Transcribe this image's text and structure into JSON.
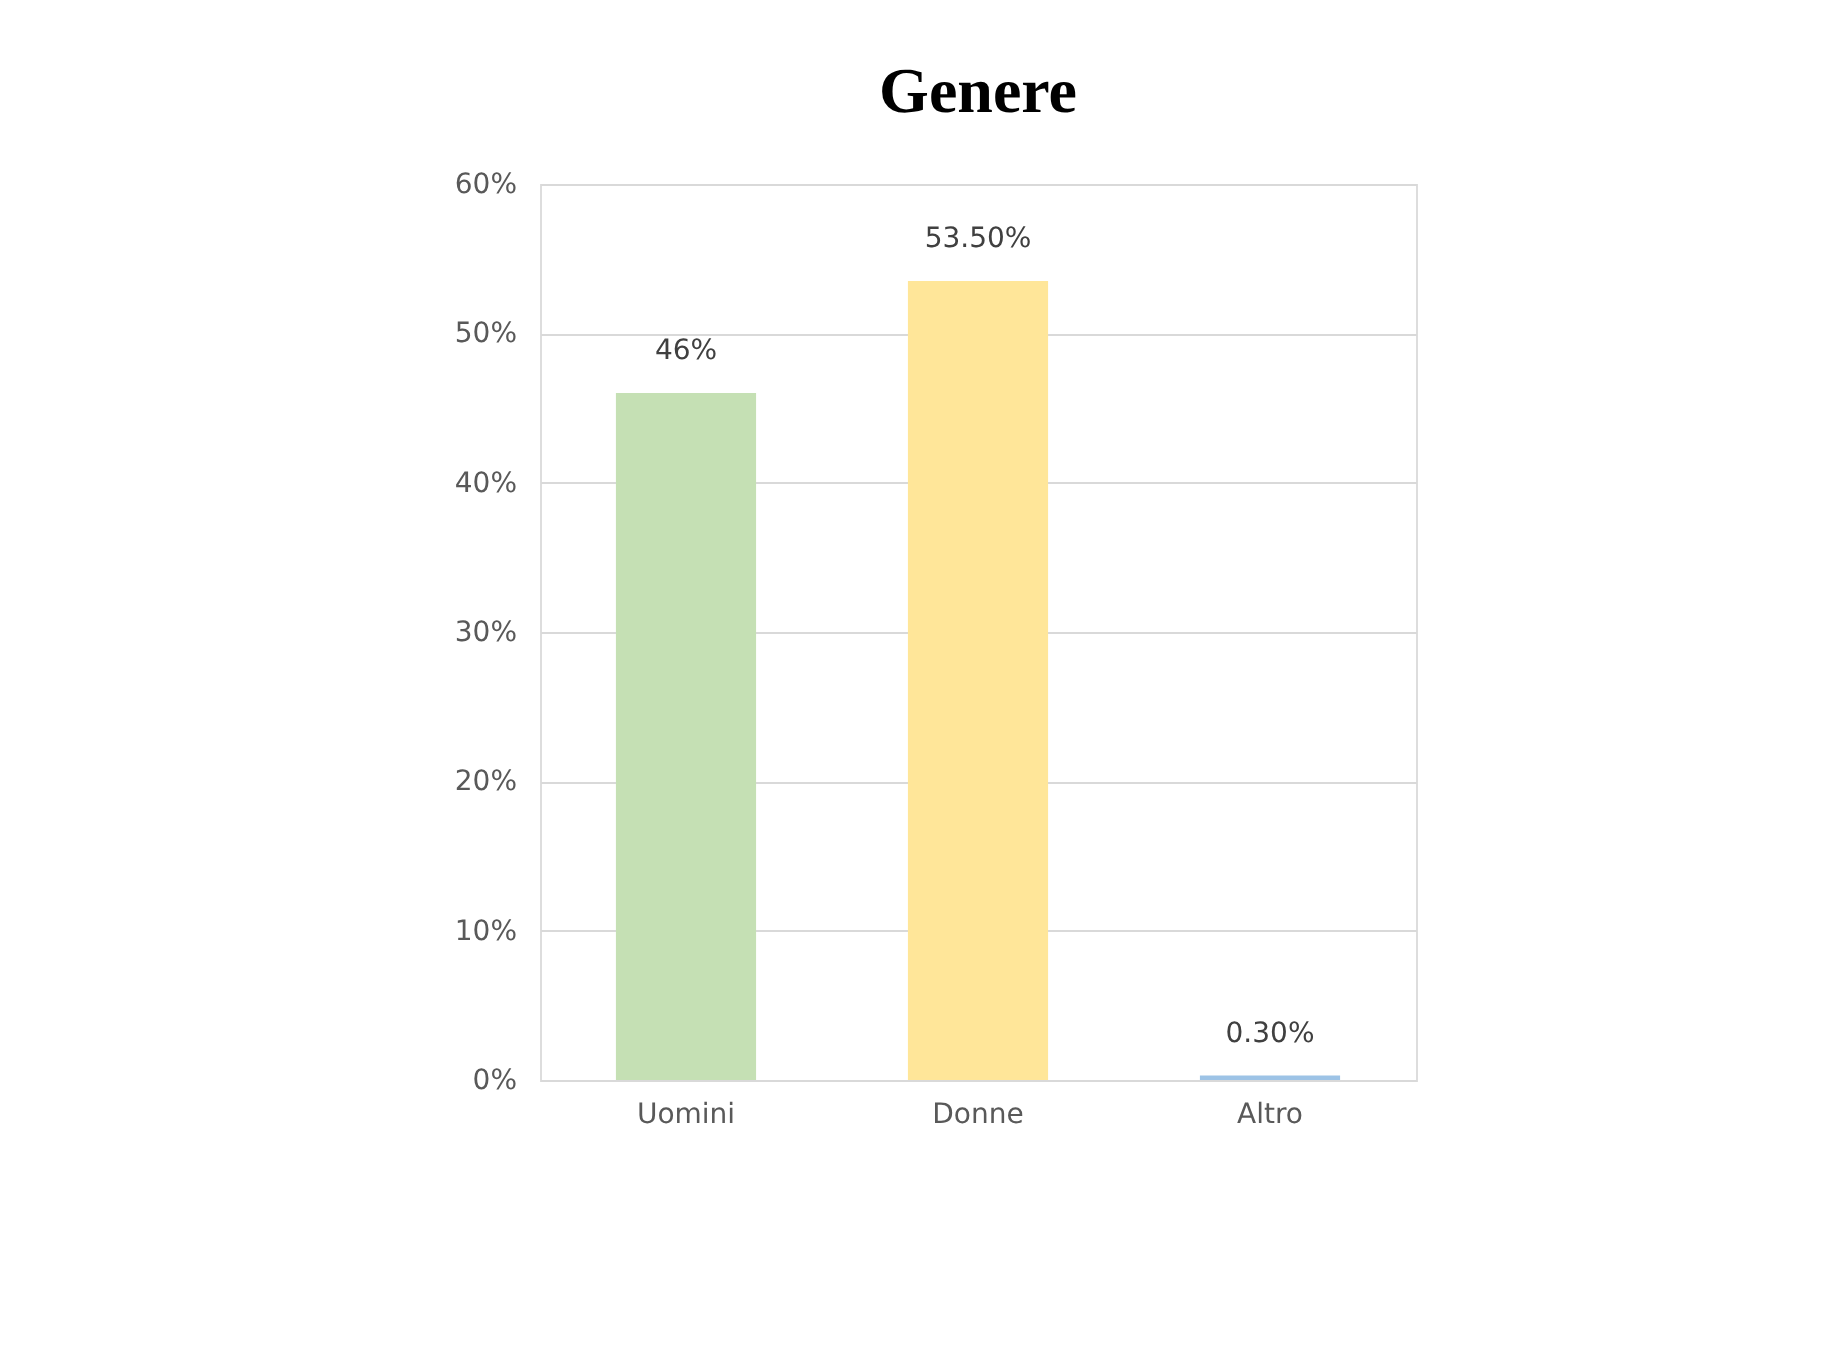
{
  "chart_data": {
    "type": "bar",
    "title": "Genere",
    "categories": [
      "Uomini",
      "Donne",
      "Altro"
    ],
    "values": [
      46,
      53.5,
      0.3
    ],
    "colors": [
      "#c5e0b4",
      "#ffe699",
      "#9dc3e6"
    ],
    "value_labels": [
      "46%",
      "53.50%",
      "0.30%"
    ],
    "ylim": [
      0,
      60
    ],
    "yticks": [
      {
        "value": 0,
        "label": "0%"
      },
      {
        "value": 10,
        "label": "10%"
      },
      {
        "value": 20,
        "label": "20%"
      },
      {
        "value": 30,
        "label": "30%"
      },
      {
        "value": 40,
        "label": "40%"
      },
      {
        "value": 50,
        "label": "50%"
      },
      {
        "value": 60,
        "label": "60%"
      }
    ],
    "grid": "y"
  }
}
